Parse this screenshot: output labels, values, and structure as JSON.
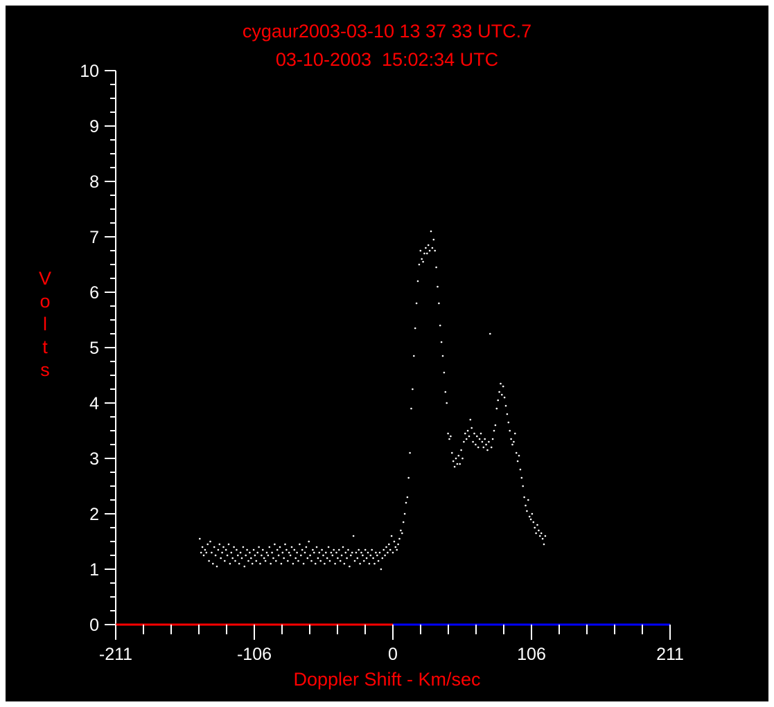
{
  "colors": {
    "background": "#000000",
    "frame": "#ffffff",
    "title": "#ff0000",
    "axes": "#ffffff",
    "points": "#ffffff",
    "negative_axis": "#ff0000",
    "positive_axis": "#0000ff"
  },
  "chart_data": {
    "type": "scatter",
    "title": "cygaur2003-03-10 13 37 33 UTC.7",
    "subtitle": "03-10-2003  15:02:34 UTC",
    "xlabel": "Doppler Shift - Km/sec",
    "ylabel": "Volts",
    "xlim": [
      -211,
      211
    ],
    "ylim": [
      0,
      10
    ],
    "xticks": [
      "-211",
      "-106",
      "0",
      "106",
      "211"
    ],
    "yticks": [
      "0",
      "1",
      "2",
      "3",
      "4",
      "5",
      "6",
      "7",
      "8",
      "9",
      "10"
    ],
    "grid": false,
    "series": [
      {
        "points": [
          [
            -147,
            1.55
          ],
          [
            -146,
            1.3
          ],
          [
            -145,
            1.4
          ],
          [
            -144,
            1.25
          ],
          [
            -143,
            1.35
          ],
          [
            -142,
            1.3
          ],
          [
            -141,
            1.45
          ],
          [
            -140,
            1.15
          ],
          [
            -139,
            1.5
          ],
          [
            -138,
            1.3
          ],
          [
            -137,
            1.1
          ],
          [
            -136,
            1.4
          ],
          [
            -135,
            1.25
          ],
          [
            -134,
            1.05
          ],
          [
            -133,
            1.35
          ],
          [
            -132,
            1.45
          ],
          [
            -131,
            1.2
          ],
          [
            -130,
            1.3
          ],
          [
            -129,
            1.4
          ],
          [
            -128,
            1.15
          ],
          [
            -127,
            1.35
          ],
          [
            -126,
            1.25
          ],
          [
            -125,
            1.45
          ],
          [
            -124,
            1.1
          ],
          [
            -123,
            1.3
          ],
          [
            -122,
            1.2
          ],
          [
            -121,
            1.4
          ],
          [
            -120,
            1.15
          ],
          [
            -119,
            1.35
          ],
          [
            -118,
            1.25
          ],
          [
            -117,
            1.1
          ],
          [
            -116,
            1.3
          ],
          [
            -115,
            1.2
          ],
          [
            -114,
            1.4
          ],
          [
            -113,
            1.05
          ],
          [
            -112,
            1.25
          ],
          [
            -111,
            1.35
          ],
          [
            -110,
            1.15
          ],
          [
            -109,
            1.3
          ],
          [
            -108,
            1.2
          ],
          [
            -107,
            1.1
          ],
          [
            -106,
            1.35
          ],
          [
            -105,
            1.25
          ],
          [
            -104,
            1.15
          ],
          [
            -103,
            1.3
          ],
          [
            -102,
            1.4
          ],
          [
            -101,
            1.1
          ],
          [
            -100,
            1.25
          ],
          [
            -99,
            1.35
          ],
          [
            -98,
            1.2
          ],
          [
            -97,
            1.15
          ],
          [
            -96,
            1.3
          ],
          [
            -95,
            1.25
          ],
          [
            -94,
            1.4
          ],
          [
            -93,
            1.1
          ],
          [
            -92,
            1.3
          ],
          [
            -91,
            1.2
          ],
          [
            -90,
            1.45
          ],
          [
            -89,
            1.15
          ],
          [
            -88,
            1.35
          ],
          [
            -87,
            1.25
          ],
          [
            -86,
            1.4
          ],
          [
            -85,
            1.1
          ],
          [
            -84,
            1.3
          ],
          [
            -83,
            1.2
          ],
          [
            -82,
            1.45
          ],
          [
            -81,
            1.35
          ],
          [
            -80,
            1.15
          ],
          [
            -79,
            1.3
          ],
          [
            -78,
            1.25
          ],
          [
            -77,
            1.4
          ],
          [
            -76,
            1.1
          ],
          [
            -75,
            1.35
          ],
          [
            -74,
            1.2
          ],
          [
            -73,
            1.3
          ],
          [
            -72,
            1.15
          ],
          [
            -71,
            1.45
          ],
          [
            -70,
            1.25
          ],
          [
            -69,
            1.35
          ],
          [
            -68,
            1.1
          ],
          [
            -67,
            1.3
          ],
          [
            -66,
            1.4
          ],
          [
            -65,
            1.2
          ],
          [
            -64,
            1.5
          ],
          [
            -63,
            1.25
          ],
          [
            -62,
            1.15
          ],
          [
            -61,
            1.35
          ],
          [
            -60,
            1.3
          ],
          [
            -59,
            1.1
          ],
          [
            -58,
            1.4
          ],
          [
            -57,
            1.2
          ],
          [
            -56,
            1.3
          ],
          [
            -55,
            1.15
          ],
          [
            -54,
            1.35
          ],
          [
            -53,
            1.25
          ],
          [
            -52,
            1.1
          ],
          [
            -51,
            1.3
          ],
          [
            -50,
            1.2
          ],
          [
            -49,
            1.4
          ],
          [
            -48,
            1.15
          ],
          [
            -47,
            1.3
          ],
          [
            -46,
            1.25
          ],
          [
            -45,
            1.35
          ],
          [
            -44,
            1.1
          ],
          [
            -43,
            1.3
          ],
          [
            -42,
            1.2
          ],
          [
            -41,
            1.35
          ],
          [
            -40,
            1.15
          ],
          [
            -39,
            1.25
          ],
          [
            -38,
            1.4
          ],
          [
            -37,
            1.1
          ],
          [
            -36,
            1.3
          ],
          [
            -35,
            1.2
          ],
          [
            -34,
            1.35
          ],
          [
            -33,
            1.05
          ],
          [
            -32,
            1.25
          ],
          [
            -31,
            1.3
          ],
          [
            -30,
            1.6
          ],
          [
            -29,
            1.15
          ],
          [
            -28,
            1.3
          ],
          [
            -27,
            1.2
          ],
          [
            -26,
            1.35
          ],
          [
            -25,
            1.1
          ],
          [
            -24,
            1.3
          ],
          [
            -23,
            1.25
          ],
          [
            -22,
            1.15
          ],
          [
            -21,
            1.35
          ],
          [
            -20,
            1.2
          ],
          [
            -19,
            1.3
          ],
          [
            -18,
            1.1
          ],
          [
            -17,
            1.25
          ],
          [
            -16,
            1.35
          ],
          [
            -15,
            1.2
          ],
          [
            -14,
            1.1
          ],
          [
            -13,
            1.3
          ],
          [
            -12,
            1.25
          ],
          [
            -11,
            1.15
          ],
          [
            -10,
            1.3
          ],
          [
            -9,
            1.0
          ],
          [
            -8,
            1.2
          ],
          [
            -7,
            1.35
          ],
          [
            -6,
            1.25
          ],
          [
            -5,
            1.4
          ],
          [
            -4,
            1.3
          ],
          [
            -3,
            1.45
          ],
          [
            -2,
            1.35
          ],
          [
            -1,
            1.6
          ],
          [
            0,
            1.3
          ],
          [
            1,
            1.5
          ],
          [
            2,
            1.4
          ],
          [
            3,
            1.35
          ],
          [
            4,
            1.45
          ],
          [
            5,
            1.55
          ],
          [
            6,
            1.7
          ],
          [
            7,
            1.65
          ],
          [
            8,
            1.85
          ],
          [
            9,
            2.0
          ],
          [
            10,
            2.2
          ],
          [
            11,
            2.3
          ],
          [
            12,
            2.65
          ],
          [
            13,
            3.1
          ],
          [
            14,
            3.9
          ],
          [
            15,
            4.25
          ],
          [
            16,
            4.85
          ],
          [
            17,
            5.35
          ],
          [
            18,
            5.8
          ],
          [
            19,
            6.2
          ],
          [
            20,
            6.5
          ],
          [
            21,
            6.75
          ],
          [
            22,
            6.6
          ],
          [
            23,
            6.55
          ],
          [
            24,
            6.7
          ],
          [
            25,
            6.8
          ],
          [
            26,
            6.7
          ],
          [
            27,
            6.85
          ],
          [
            28,
            6.75
          ],
          [
            29,
            7.1
          ],
          [
            30,
            6.8
          ],
          [
            31,
            6.95
          ],
          [
            32,
            6.75
          ],
          [
            33,
            6.45
          ],
          [
            34,
            6.1
          ],
          [
            35,
            5.8
          ],
          [
            36,
            5.4
          ],
          [
            37,
            5.1
          ],
          [
            38,
            4.85
          ],
          [
            39,
            4.55
          ],
          [
            40,
            4.2
          ],
          [
            41,
            4.0
          ],
          [
            42,
            3.45
          ],
          [
            43,
            3.35
          ],
          [
            44,
            3.4
          ],
          [
            45,
            3.1
          ],
          [
            46,
            2.95
          ],
          [
            47,
            2.85
          ],
          [
            48,
            3.0
          ],
          [
            49,
            2.9
          ],
          [
            50,
            3.05
          ],
          [
            51,
            2.9
          ],
          [
            52,
            3.15
          ],
          [
            53,
            3.0
          ],
          [
            54,
            3.3
          ],
          [
            55,
            3.45
          ],
          [
            56,
            3.35
          ],
          [
            57,
            3.5
          ],
          [
            58,
            3.4
          ],
          [
            59,
            3.7
          ],
          [
            60,
            3.55
          ],
          [
            61,
            3.3
          ],
          [
            62,
            3.45
          ],
          [
            63,
            3.25
          ],
          [
            64,
            3.4
          ],
          [
            65,
            3.2
          ],
          [
            66,
            3.35
          ],
          [
            67,
            3.45
          ],
          [
            68,
            3.3
          ],
          [
            69,
            3.2
          ],
          [
            70,
            3.35
          ],
          [
            71,
            3.25
          ],
          [
            72,
            3.15
          ],
          [
            73,
            3.3
          ],
          [
            74,
            5.25
          ],
          [
            75,
            3.2
          ],
          [
            76,
            3.35
          ],
          [
            77,
            3.5
          ],
          [
            78,
            3.6
          ],
          [
            79,
            3.9
          ],
          [
            80,
            4.05
          ],
          [
            81,
            4.2
          ],
          [
            82,
            4.35
          ],
          [
            83,
            4.15
          ],
          [
            84,
            4.3
          ],
          [
            85,
            4.1
          ],
          [
            86,
            3.95
          ],
          [
            87,
            3.8
          ],
          [
            88,
            3.65
          ],
          [
            89,
            3.5
          ],
          [
            90,
            3.35
          ],
          [
            91,
            3.25
          ],
          [
            92,
            3.3
          ],
          [
            93,
            3.45
          ],
          [
            94,
            3.1
          ],
          [
            95,
            2.95
          ],
          [
            96,
            3.05
          ],
          [
            97,
            2.8
          ],
          [
            98,
            2.65
          ],
          [
            99,
            2.5
          ],
          [
            100,
            2.3
          ],
          [
            101,
            2.15
          ],
          [
            102,
            2.05
          ],
          [
            103,
            2.25
          ],
          [
            104,
            1.95
          ],
          [
            105,
            1.9
          ],
          [
            106,
            2.0
          ],
          [
            107,
            1.85
          ],
          [
            108,
            1.75
          ],
          [
            109,
            1.65
          ],
          [
            110,
            1.8
          ],
          [
            111,
            1.7
          ],
          [
            112,
            1.6
          ],
          [
            113,
            1.65
          ],
          [
            114,
            1.55
          ],
          [
            115,
            1.45
          ],
          [
            116,
            1.6
          ]
        ]
      }
    ]
  }
}
